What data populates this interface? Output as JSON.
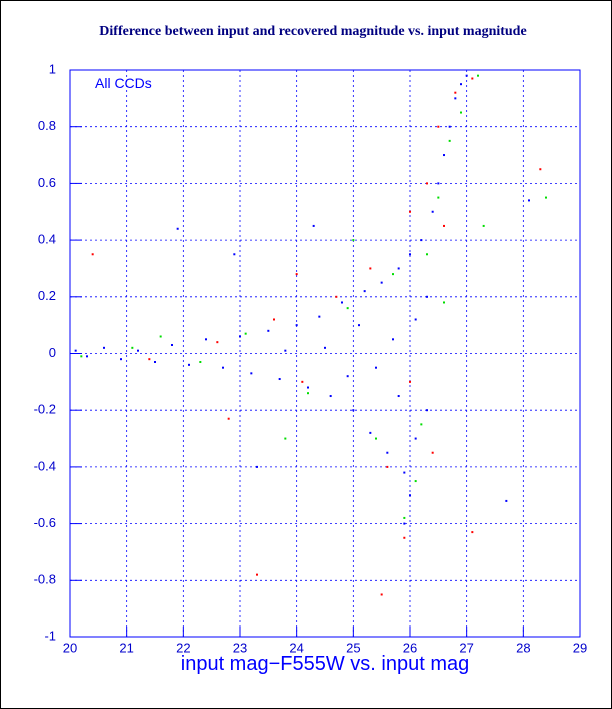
{
  "chart_data": {
    "type": "scatter",
    "title": "Difference between input and recovered magnitude vs. input magnitude",
    "annotation": "All CCDs",
    "x_label": "input mag−F555W vs. input mag",
    "xlim": [
      20,
      29
    ],
    "xticks": [
      20,
      21,
      22,
      23,
      24,
      25,
      26,
      27,
      28,
      29
    ],
    "ylim": [
      -1,
      1
    ],
    "yticks": [
      -1,
      -0.8,
      -0.6,
      -0.4,
      -0.2,
      0,
      0.2,
      0.4,
      0.6,
      0.8,
      1
    ],
    "grid": true,
    "series": [
      {
        "color": "#0000ff",
        "x": [
          20.1,
          20.3,
          20.6,
          20.9,
          21.2,
          21.5,
          21.8,
          22.1,
          22.4,
          22.7,
          23.0,
          23.2,
          23.5,
          23.7,
          24.0,
          24.2,
          24.4,
          24.6,
          24.8,
          25.0,
          25.2,
          25.3,
          25.5,
          25.6,
          25.8,
          25.9,
          26.0,
          26.1,
          26.2,
          26.3,
          26.4,
          26.5,
          26.6,
          26.7,
          26.8,
          26.9,
          25.7,
          25.4,
          25.1,
          24.9,
          24.5,
          23.8,
          22.9,
          21.9,
          24.3,
          25.9,
          26.0,
          23.3,
          26.3,
          26.1,
          25.8,
          27.0,
          28.1,
          27.7
        ],
        "values": [
          0.01,
          -0.01,
          0.02,
          -0.02,
          0.01,
          -0.03,
          0.03,
          -0.04,
          0.05,
          -0.05,
          0.06,
          -0.07,
          0.08,
          -0.09,
          0.1,
          -0.12,
          0.13,
          -0.15,
          0.18,
          -0.2,
          0.22,
          -0.28,
          0.25,
          -0.35,
          0.3,
          -0.42,
          0.35,
          -0.3,
          0.4,
          -0.2,
          0.5,
          0.6,
          0.7,
          0.8,
          0.9,
          0.95,
          0.05,
          -0.05,
          0.1,
          -0.08,
          0.02,
          0.01,
          0.35,
          0.44,
          0.45,
          -0.6,
          -0.5,
          -0.4,
          0.2,
          0.12,
          -0.15,
          0.98,
          0.54,
          -0.52
        ]
      },
      {
        "color": "#ff0000",
        "x": [
          20.4,
          21.4,
          22.6,
          23.6,
          24.1,
          24.7,
          25.3,
          25.6,
          26.0,
          26.3,
          26.5,
          26.8,
          27.1,
          25.9,
          26.0,
          23.3,
          27.1,
          28.3,
          25.5,
          26.4,
          22.8,
          24.0,
          26.6
        ],
        "values": [
          0.35,
          -0.02,
          0.04,
          0.12,
          -0.1,
          0.2,
          0.3,
          -0.4,
          0.5,
          0.6,
          0.8,
          0.92,
          0.97,
          -0.65,
          -0.1,
          -0.78,
          -0.63,
          0.65,
          -0.85,
          -0.35,
          -0.23,
          0.28,
          0.45
        ]
      },
      {
        "color": "#00dd00",
        "x": [
          20.2,
          21.1,
          22.3,
          23.1,
          24.2,
          24.9,
          25.4,
          25.7,
          26.1,
          26.3,
          26.5,
          26.7,
          26.9,
          27.2,
          25.9,
          26.2,
          27.3,
          28.4,
          25.0,
          23.8,
          21.6,
          26.6
        ],
        "values": [
          -0.01,
          0.02,
          -0.03,
          0.07,
          -0.14,
          0.16,
          -0.3,
          0.28,
          -0.45,
          0.35,
          0.55,
          0.75,
          0.85,
          0.98,
          -0.58,
          -0.25,
          0.45,
          0.55,
          0.4,
          -0.3,
          0.06,
          0.18
        ]
      }
    ]
  }
}
